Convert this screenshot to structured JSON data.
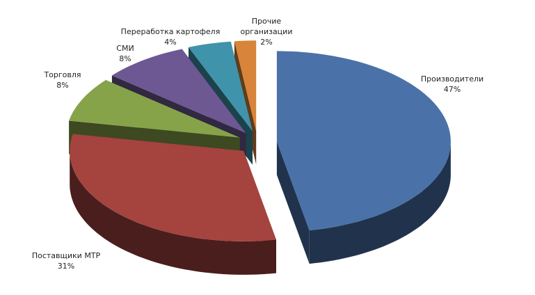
{
  "chart_data": {
    "type": "pie3d",
    "categories": [
      "Производители",
      "Поставщики МТР",
      "Торговля",
      "СМИ",
      "Переработка картофеля",
      "Прочие организации"
    ],
    "values": [
      47,
      31,
      8,
      8,
      4,
      2
    ],
    "value_labels": [
      "47%",
      "31%",
      "8%",
      "8%",
      "4%",
      "2%"
    ],
    "colors": [
      "#4a72a8",
      "#a5433f",
      "#87a34a",
      "#6d5893",
      "#3f93aa",
      "#d8843a"
    ]
  }
}
